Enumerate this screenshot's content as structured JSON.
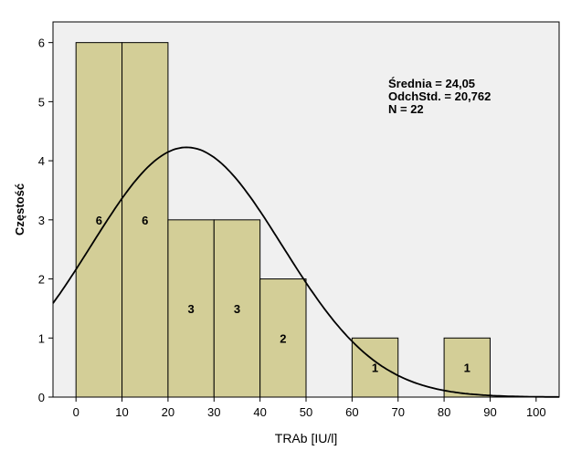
{
  "chart_data": {
    "type": "bar",
    "subtype": "histogram",
    "title": "",
    "xlabel": "TRAb [IU/l]",
    "ylabel": "Częstość",
    "xlim": [
      -5,
      105
    ],
    "ylim": [
      0,
      6.35
    ],
    "x_ticks": [
      0,
      10,
      20,
      30,
      40,
      50,
      60,
      70,
      80,
      90,
      100
    ],
    "y_ticks": [
      0,
      1,
      2,
      3,
      4,
      5,
      6
    ],
    "bins": [
      {
        "from": 0,
        "to": 10,
        "count": 6,
        "label": "6"
      },
      {
        "from": 10,
        "to": 20,
        "count": 6,
        "label": "6"
      },
      {
        "from": 20,
        "to": 30,
        "count": 3,
        "label": "3"
      },
      {
        "from": 30,
        "to": 40,
        "count": 3,
        "label": "3"
      },
      {
        "from": 40,
        "to": 50,
        "count": 2,
        "label": "2"
      },
      {
        "from": 60,
        "to": 70,
        "count": 1,
        "label": "1"
      },
      {
        "from": 80,
        "to": 90,
        "count": 1,
        "label": "1"
      }
    ],
    "normal_curve": {
      "mean": 24.05,
      "sd": 20.762,
      "n": 22,
      "bin_width": 10
    },
    "stats": {
      "mean_text": "Średnia = 24,05",
      "sd_text": "OdchStd. = 20,762",
      "n_text": "N = 22"
    },
    "grid": false,
    "colors": {
      "plot_background": "#f0f0f0",
      "bar_fill": "#d3ce97",
      "bar_stroke": "#000000",
      "curve": "#000000"
    }
  }
}
